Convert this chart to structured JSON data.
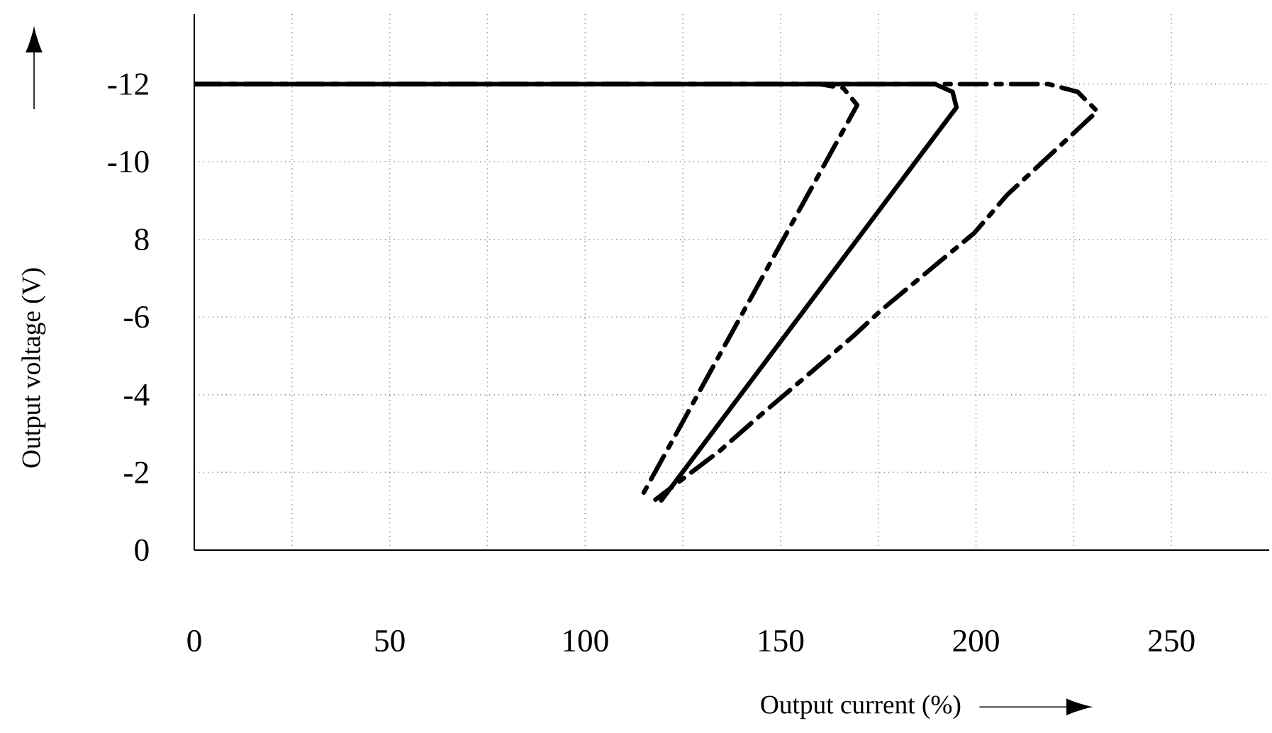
{
  "chart_data": {
    "type": "line",
    "xlabel": "Output current (%)",
    "ylabel": "Output voltage (V)",
    "xlim": [
      0,
      275
    ],
    "ylim": [
      0,
      -13.8
    ],
    "xticks": [
      0,
      {
        "value": 25,
        "label": null
      },
      50,
      {
        "value": 75,
        "label": null
      },
      100,
      {
        "value": 125,
        "label": null
      },
      150,
      {
        "value": 175,
        "label": null
      },
      200,
      {
        "value": 225,
        "label": null
      },
      250
    ],
    "yticks": [
      0,
      -2,
      -4,
      -6,
      {
        "value": -8,
        "label": "8"
      },
      -10,
      -12
    ],
    "grid": true,
    "marker": "none",
    "series": [
      {
        "color": "#000000",
        "line_style": "dashed",
        "x": [
          0,
          160,
          166,
          169.6,
          114.5
        ],
        "values": [
          -12,
          -12,
          -11.9,
          -11.46,
          -1.39
        ]
      },
      {
        "color": "#000000",
        "line_style": "solid",
        "x": [
          0,
          189.5,
          194,
          195,
          119.5
        ],
        "values": [
          -12,
          -12,
          -11.8,
          -11.4,
          -1.28
        ]
      },
      {
        "color": "#000000",
        "line_style": "dashed",
        "x": [
          0,
          218.5,
          226,
          231,
          208,
          199.6,
          176,
          168.5,
          144,
          134.5,
          118
        ],
        "values": [
          -12,
          -12,
          -11.8,
          -11.3,
          -9.15,
          -8.17,
          -6.2,
          -5.5,
          -3.4,
          -2.56,
          -1.3
        ]
      }
    ]
  }
}
